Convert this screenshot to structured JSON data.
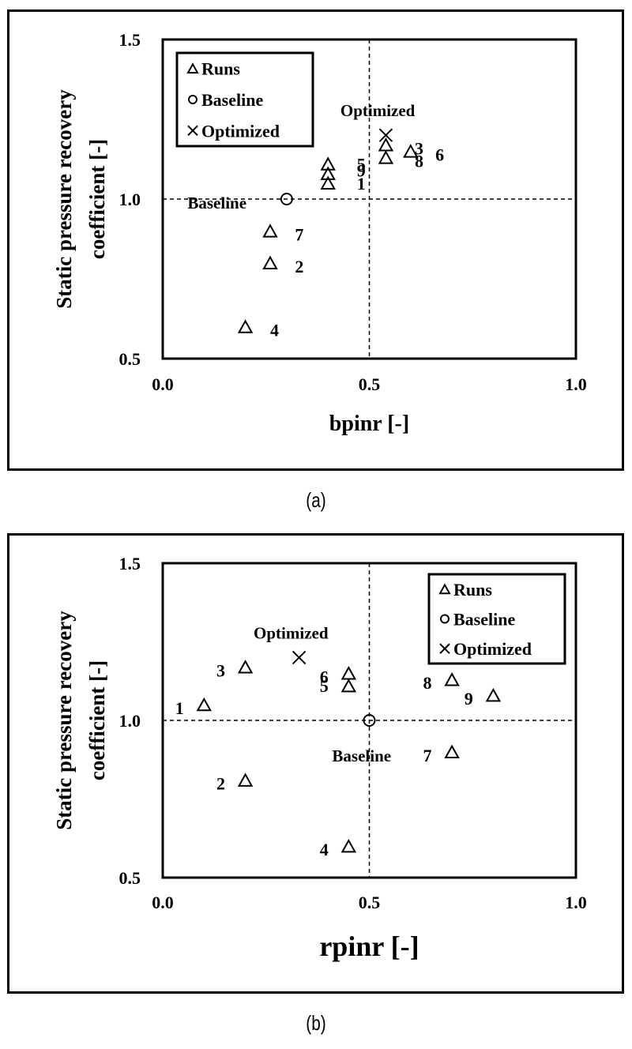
{
  "captions": {
    "a": "(a)",
    "b": "(b)"
  },
  "legend": {
    "runs": "Runs",
    "baseline": "Baseline",
    "optimized": "Optimized"
  },
  "chart_data": [
    {
      "id": "a",
      "type": "scatter",
      "title": "",
      "xlabel": "bpinr [-]",
      "ylabel": "Static pressure recovery coefficient [-]",
      "ylabel_lines": [
        "Static pressure recovery",
        "coefficient  [-]"
      ],
      "xlim": [
        0.0,
        1.0
      ],
      "ylim": [
        0.5,
        1.5
      ],
      "xticks": [
        "0.0",
        "0.5",
        "1.0"
      ],
      "yticks": [
        "0.5",
        "1.0",
        "1.5"
      ],
      "grid": false,
      "reference_lines": {
        "x": 0.5,
        "y": 1.0,
        "style": "dashed"
      },
      "legend_position": "upper left",
      "series": [
        {
          "name": "Runs",
          "marker": "triangle",
          "points": [
            {
              "label": "1",
              "x": 0.4,
              "y": 1.05
            },
            {
              "label": "2",
              "x": 0.26,
              "y": 0.8
            },
            {
              "label": "3",
              "x": 0.54,
              "y": 1.17
            },
            {
              "label": "4",
              "x": 0.2,
              "y": 0.6
            },
            {
              "label": "5",
              "x": 0.4,
              "y": 1.11
            },
            {
              "label": "6",
              "x": 0.6,
              "y": 1.15
            },
            {
              "label": "7",
              "x": 0.26,
              "y": 0.9
            },
            {
              "label": "8",
              "x": 0.54,
              "y": 1.13
            },
            {
              "label": "9",
              "x": 0.4,
              "y": 1.08
            }
          ]
        },
        {
          "name": "Baseline",
          "marker": "circle",
          "points": [
            {
              "label": "Baseline",
              "x": 0.3,
              "y": 1.0
            }
          ]
        },
        {
          "name": "Optimized",
          "marker": "x",
          "points": [
            {
              "label": "Optimized",
              "x": 0.54,
              "y": 1.2
            }
          ]
        }
      ],
      "annotations": [
        {
          "text": "Optimized",
          "x": 0.43,
          "y": 1.28
        },
        {
          "text": "Baseline",
          "x": 0.06,
          "y": 0.99
        },
        {
          "text": "5",
          "x": 0.47,
          "y": 1.11
        },
        {
          "text": "9",
          "x": 0.47,
          "y": 1.09
        },
        {
          "text": "1",
          "x": 0.47,
          "y": 1.05
        },
        {
          "text": "3",
          "x": 0.61,
          "y": 1.16
        },
        {
          "text": "8",
          "x": 0.61,
          "y": 1.12
        },
        {
          "text": "6",
          "x": 0.66,
          "y": 1.14
        },
        {
          "text": "7",
          "x": 0.32,
          "y": 0.89
        },
        {
          "text": "2",
          "x": 0.32,
          "y": 0.79
        },
        {
          "text": "4",
          "x": 0.26,
          "y": 0.59
        }
      ]
    },
    {
      "id": "b",
      "type": "scatter",
      "title": "",
      "xlabel": "rpinr [-]",
      "ylabel": "Static pressure recovery coefficient [-]",
      "ylabel_lines": [
        "Static pressure recovery",
        "coefficient  [-]"
      ],
      "xlim": [
        0.0,
        1.0
      ],
      "ylim": [
        0.5,
        1.5
      ],
      "xticks": [
        "0.0",
        "0.5",
        "1.0"
      ],
      "yticks": [
        "0.5",
        "1.0",
        "1.5"
      ],
      "grid": false,
      "reference_lines": {
        "x": 0.5,
        "y": 1.0,
        "style": "dashed"
      },
      "legend_position": "upper right",
      "series": [
        {
          "name": "Runs",
          "marker": "triangle",
          "points": [
            {
              "label": "1",
              "x": 0.1,
              "y": 1.05
            },
            {
              "label": "2",
              "x": 0.2,
              "y": 0.81
            },
            {
              "label": "3",
              "x": 0.2,
              "y": 1.17
            },
            {
              "label": "4",
              "x": 0.45,
              "y": 0.6
            },
            {
              "label": "5",
              "x": 0.45,
              "y": 1.11
            },
            {
              "label": "6",
              "x": 0.45,
              "y": 1.15
            },
            {
              "label": "7",
              "x": 0.7,
              "y": 0.9
            },
            {
              "label": "8",
              "x": 0.7,
              "y": 1.13
            },
            {
              "label": "9",
              "x": 0.8,
              "y": 1.08
            }
          ]
        },
        {
          "name": "Baseline",
          "marker": "circle",
          "points": [
            {
              "label": "Baseline",
              "x": 0.5,
              "y": 1.0
            }
          ]
        },
        {
          "name": "Optimized",
          "marker": "x",
          "points": [
            {
              "label": "Optimized",
              "x": 0.33,
              "y": 1.2
            }
          ]
        }
      ],
      "annotations": [
        {
          "text": "Optimized",
          "x": 0.22,
          "y": 1.28
        },
        {
          "text": "Baseline",
          "x": 0.41,
          "y": 0.89
        },
        {
          "text": "1",
          "x": 0.03,
          "y": 1.04
        },
        {
          "text": "3",
          "x": 0.13,
          "y": 1.16
        },
        {
          "text": "6",
          "x": 0.38,
          "y": 1.14
        },
        {
          "text": "5",
          "x": 0.38,
          "y": 1.11
        },
        {
          "text": "8",
          "x": 0.63,
          "y": 1.12
        },
        {
          "text": "9",
          "x": 0.73,
          "y": 1.07
        },
        {
          "text": "7",
          "x": 0.63,
          "y": 0.89
        },
        {
          "text": "2",
          "x": 0.13,
          "y": 0.8
        },
        {
          "text": "4",
          "x": 0.38,
          "y": 0.59
        }
      ]
    }
  ]
}
